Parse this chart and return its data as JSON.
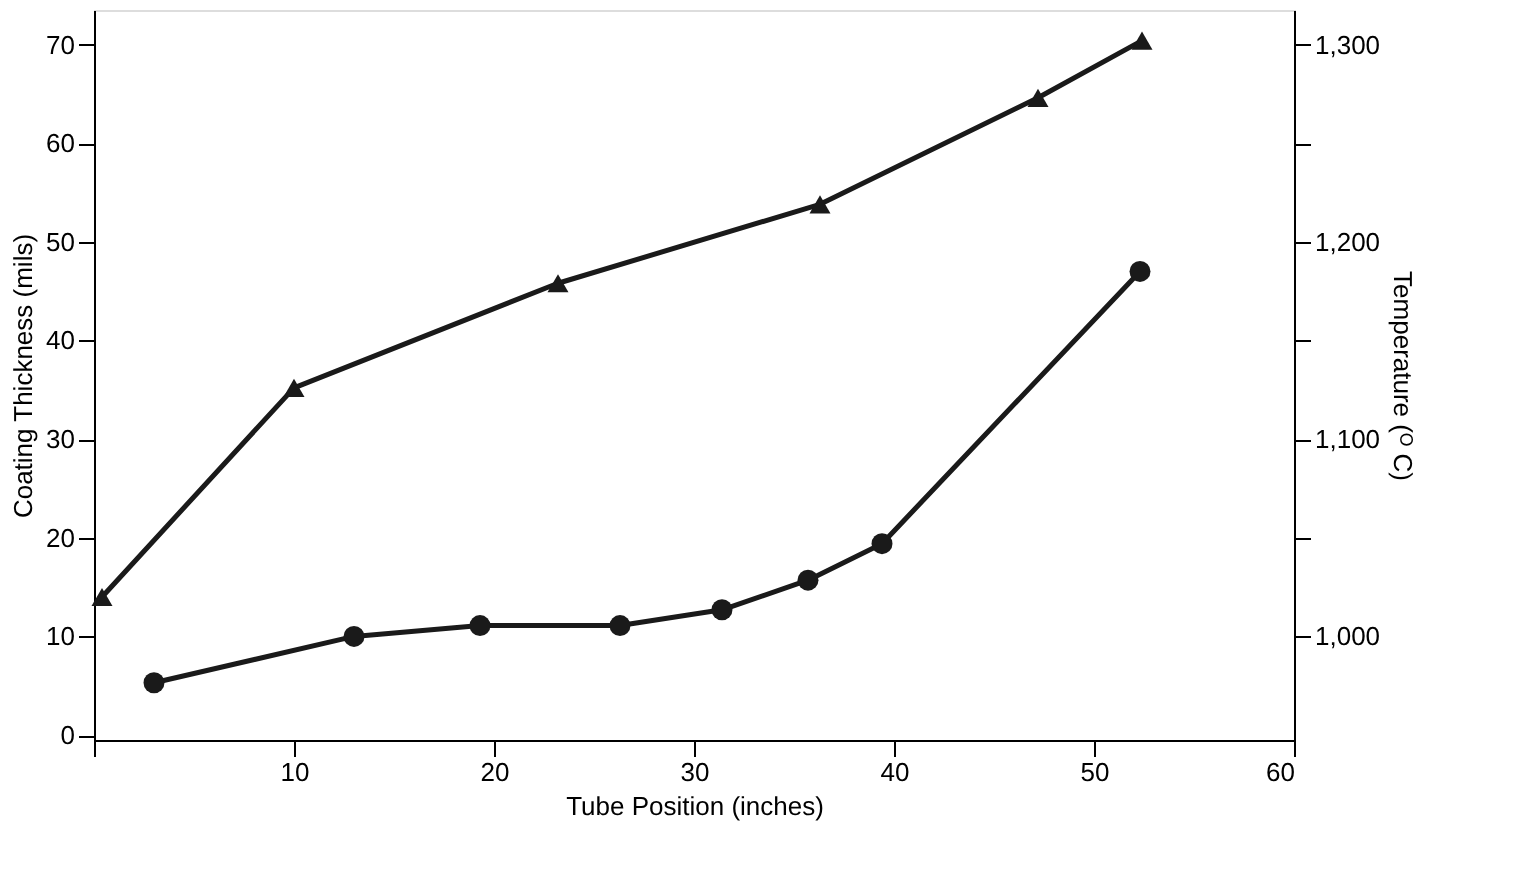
{
  "chart_data": {
    "type": "line",
    "xlabel": "Tube Position (inches)",
    "ylabel": "Coating Thickness (mils)",
    "y2label": "Temperature (ᴼ C)",
    "xlim": [
      0,
      60
    ],
    "xticks": [
      {
        "value": 0,
        "label": null
      },
      10,
      20,
      30,
      40,
      50,
      60
    ],
    "ylim": [
      -0.5,
      73.5
    ],
    "yticks": [
      0,
      10,
      20,
      30,
      40,
      50,
      60,
      70
    ],
    "y2lim": [
      947.5,
      1317.5
    ],
    "y2ticks": [
      {
        "value": 1000,
        "label": "1,000"
      },
      {
        "value": 1050,
        "label": null
      },
      {
        "value": 1100,
        "label": "1,100"
      },
      {
        "value": 1150,
        "label": null
      },
      {
        "value": 1200,
        "label": "1,200"
      },
      {
        "value": 1250,
        "label": null
      },
      {
        "value": 1300,
        "label": "1,300"
      }
    ],
    "grid": false,
    "series": [
      {
        "color": "#1a1a1a",
        "marker": "triangle",
        "axis": "y2",
        "x": [
          0.4,
          10.0,
          23.2,
          36.3,
          47.2,
          52.4
        ],
        "values": [
          1020,
          1126,
          1179,
          1219,
          1273,
          1302
        ]
      },
      {
        "color": "#1a1a1a",
        "marker": "circle",
        "x": [
          3.0,
          13.0,
          19.3,
          26.3,
          31.4,
          35.7,
          39.4,
          52.3
        ],
        "values": [
          5.3,
          10.0,
          11.1,
          11.1,
          12.7,
          15.7,
          19.4,
          47.0
        ]
      }
    ]
  }
}
